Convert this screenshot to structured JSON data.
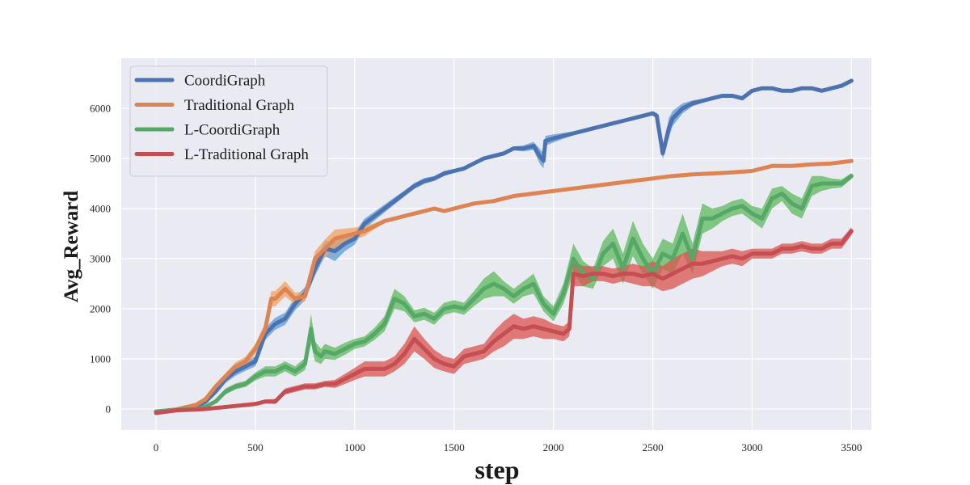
{
  "chart_data": {
    "type": "line",
    "title": "",
    "xlabel": "step",
    "ylabel": "Avg_Reward",
    "xlim": [
      -175,
      3600
    ],
    "ylim": [
      -420,
      7000
    ],
    "xticks": [
      0,
      500,
      1000,
      1500,
      2000,
      2500,
      3000,
      3500
    ],
    "yticks": [
      0,
      1000,
      2000,
      3000,
      4000,
      5000,
      6000
    ],
    "grid": true,
    "legend_position": "top-left",
    "series": [
      {
        "name": "CoordiGraph",
        "color": "#4c72b0",
        "band_color": "#5b9bd5",
        "x": [
          0,
          100,
          200,
          250,
          300,
          350,
          400,
          450,
          500,
          550,
          600,
          650,
          700,
          750,
          800,
          850,
          900,
          950,
          1000,
          1050,
          1100,
          1150,
          1200,
          1250,
          1300,
          1350,
          1400,
          1450,
          1500,
          1550,
          1600,
          1650,
          1700,
          1750,
          1800,
          1850,
          1900,
          1930,
          1950,
          1960,
          2000,
          2050,
          2100,
          2150,
          2200,
          2250,
          2300,
          2350,
          2400,
          2450,
          2500,
          2520,
          2550,
          2560,
          2580,
          2600,
          2650,
          2700,
          2750,
          2800,
          2850,
          2900,
          2950,
          3000,
          3050,
          3100,
          3150,
          3200,
          3250,
          3300,
          3350,
          3400,
          3450,
          3500
        ],
        "y": [
          -50,
          -20,
          50,
          150,
          350,
          600,
          750,
          850,
          950,
          1500,
          1700,
          1800,
          2100,
          2300,
          2800,
          3200,
          3150,
          3300,
          3400,
          3700,
          3850,
          4000,
          4150,
          4300,
          4450,
          4550,
          4600,
          4700,
          4750,
          4800,
          4900,
          5000,
          5050,
          5100,
          5200,
          5200,
          5250,
          5050,
          4950,
          5350,
          5400,
          5450,
          5500,
          5550,
          5600,
          5650,
          5700,
          5750,
          5800,
          5850,
          5900,
          5850,
          5100,
          5250,
          5600,
          5800,
          6000,
          6100,
          6150,
          6200,
          6250,
          6250,
          6200,
          6350,
          6400,
          6400,
          6350,
          6350,
          6400,
          6400,
          6350,
          6400,
          6450,
          6550
        ],
        "spread": [
          20,
          30,
          40,
          50,
          60,
          80,
          90,
          90,
          100,
          120,
          120,
          120,
          130,
          130,
          140,
          150,
          200,
          150,
          120,
          100,
          90,
          80,
          70,
          60,
          60,
          60,
          50,
          50,
          40,
          40,
          40,
          40,
          40,
          40,
          40,
          60,
          80,
          150,
          150,
          100,
          80,
          60,
          40,
          40,
          40,
          30,
          30,
          30,
          30,
          30,
          40,
          60,
          120,
          100,
          200,
          150,
          100,
          60,
          40,
          30,
          30,
          30,
          30,
          30,
          20,
          20,
          20,
          20,
          20,
          20,
          20,
          20,
          20,
          20
        ]
      },
      {
        "name": "Traditional Graph",
        "color": "#dd8452",
        "band_color": "#f0a060",
        "x": [
          0,
          100,
          200,
          250,
          300,
          350,
          400,
          450,
          500,
          550,
          580,
          600,
          650,
          700,
          750,
          800,
          850,
          900,
          950,
          1000,
          1050,
          1100,
          1150,
          1200,
          1300,
          1400,
          1450,
          1500,
          1600,
          1700,
          1800,
          1900,
          2000,
          2100,
          2200,
          2300,
          2400,
          2500,
          2600,
          2700,
          2800,
          2900,
          3000,
          3100,
          3200,
          3300,
          3400,
          3500
        ],
        "y": [
          -50,
          -10,
          80,
          200,
          450,
          650,
          850,
          950,
          1200,
          1600,
          2200,
          2200,
          2400,
          2200,
          2250,
          3000,
          3200,
          3400,
          3450,
          3500,
          3550,
          3650,
          3750,
          3800,
          3900,
          4000,
          3950,
          4000,
          4100,
          4150,
          4250,
          4300,
          4350,
          4400,
          4450,
          4500,
          4550,
          4600,
          4650,
          4680,
          4700,
          4720,
          4750,
          4850,
          4850,
          4880,
          4900,
          4950
        ],
        "spread": [
          20,
          30,
          40,
          50,
          60,
          70,
          80,
          90,
          100,
          120,
          150,
          150,
          150,
          120,
          100,
          150,
          180,
          180,
          150,
          120,
          100,
          60,
          40,
          30,
          30,
          30,
          30,
          20,
          20,
          20,
          20,
          20,
          20,
          20,
          20,
          20,
          20,
          20,
          20,
          20,
          20,
          20,
          20,
          20,
          20,
          20,
          20,
          20
        ]
      },
      {
        "name": "L-CoordiGraph",
        "color": "#55a868",
        "band_color": "#5cb85c",
        "x": [
          0,
          100,
          200,
          250,
          300,
          350,
          400,
          450,
          500,
          550,
          600,
          650,
          700,
          750,
          780,
          800,
          830,
          850,
          900,
          950,
          1000,
          1050,
          1100,
          1150,
          1200,
          1250,
          1300,
          1350,
          1400,
          1450,
          1500,
          1550,
          1600,
          1650,
          1700,
          1750,
          1800,
          1850,
          1900,
          1950,
          2000,
          2050,
          2100,
          2150,
          2200,
          2250,
          2300,
          2350,
          2400,
          2450,
          2500,
          2550,
          2600,
          2650,
          2700,
          2750,
          2800,
          2850,
          2900,
          2950,
          3000,
          3050,
          3100,
          3150,
          3200,
          3250,
          3300,
          3350,
          3400,
          3450,
          3500
        ],
        "y": [
          -50,
          -20,
          0,
          50,
          150,
          350,
          450,
          500,
          650,
          750,
          750,
          850,
          750,
          900,
          1600,
          1150,
          1050,
          1150,
          1100,
          1200,
          1300,
          1350,
          1500,
          1700,
          2200,
          2100,
          1850,
          1900,
          1800,
          2000,
          2050,
          2000,
          2200,
          2400,
          2500,
          2400,
          2250,
          2400,
          2500,
          2100,
          1900,
          2300,
          3000,
          2700,
          2600,
          3100,
          3300,
          2800,
          3400,
          3000,
          2700,
          3100,
          3000,
          3500,
          3000,
          3800,
          3800,
          3900,
          4000,
          4050,
          3900,
          3800,
          4200,
          4300,
          4100,
          4000,
          4450,
          4500,
          4500,
          4500,
          4650
        ],
        "spread": [
          20,
          20,
          30,
          30,
          40,
          60,
          60,
          60,
          80,
          100,
          100,
          100,
          100,
          120,
          300,
          200,
          150,
          150,
          120,
          120,
          100,
          100,
          120,
          150,
          200,
          150,
          120,
          120,
          120,
          120,
          120,
          120,
          150,
          200,
          250,
          150,
          150,
          150,
          200,
          150,
          150,
          200,
          300,
          250,
          200,
          250,
          300,
          300,
          350,
          300,
          300,
          300,
          300,
          400,
          300,
          300,
          200,
          150,
          150,
          150,
          150,
          200,
          200,
          150,
          200,
          200,
          200,
          150,
          100,
          80,
          60
        ]
      },
      {
        "name": "L-Traditional Graph",
        "color": "#c44e52",
        "band_color": "#d9534f",
        "x": [
          0,
          100,
          200,
          250,
          300,
          350,
          400,
          450,
          500,
          550,
          600,
          650,
          700,
          750,
          800,
          850,
          900,
          950,
          1000,
          1050,
          1100,
          1150,
          1200,
          1250,
          1300,
          1350,
          1400,
          1450,
          1500,
          1550,
          1600,
          1650,
          1700,
          1750,
          1800,
          1850,
          1900,
          1950,
          2000,
          2050,
          2080,
          2100,
          2150,
          2200,
          2250,
          2300,
          2350,
          2400,
          2450,
          2500,
          2550,
          2600,
          2650,
          2700,
          2750,
          2800,
          2850,
          2900,
          2950,
          3000,
          3050,
          3100,
          3150,
          3200,
          3250,
          3300,
          3350,
          3400,
          3450,
          3500
        ],
        "y": [
          -80,
          -30,
          -10,
          0,
          20,
          40,
          60,
          80,
          100,
          150,
          150,
          350,
          400,
          450,
          450,
          500,
          500,
          600,
          700,
          800,
          800,
          800,
          900,
          1100,
          1400,
          1200,
          1000,
          900,
          850,
          1050,
          1100,
          1150,
          1350,
          1500,
          1650,
          1600,
          1650,
          1600,
          1550,
          1500,
          1600,
          2700,
          2650,
          2700,
          2700,
          2650,
          2700,
          2700,
          2650,
          2700,
          2600,
          2700,
          2800,
          2900,
          2900,
          2950,
          3000,
          3050,
          3000,
          3100,
          3100,
          3100,
          3200,
          3200,
          3250,
          3200,
          3200,
          3300,
          3300,
          3550
        ],
        "spread": [
          20,
          20,
          20,
          20,
          20,
          20,
          20,
          20,
          30,
          40,
          50,
          60,
          60,
          60,
          60,
          60,
          80,
          100,
          120,
          150,
          150,
          150,
          150,
          200,
          250,
          200,
          180,
          150,
          150,
          150,
          150,
          150,
          200,
          250,
          250,
          200,
          200,
          200,
          150,
          150,
          150,
          250,
          200,
          150,
          150,
          150,
          150,
          200,
          200,
          250,
          250,
          300,
          300,
          300,
          250,
          200,
          150,
          150,
          150,
          100,
          100,
          100,
          100,
          100,
          100,
          100,
          100,
          100,
          100,
          80
        ]
      }
    ]
  }
}
